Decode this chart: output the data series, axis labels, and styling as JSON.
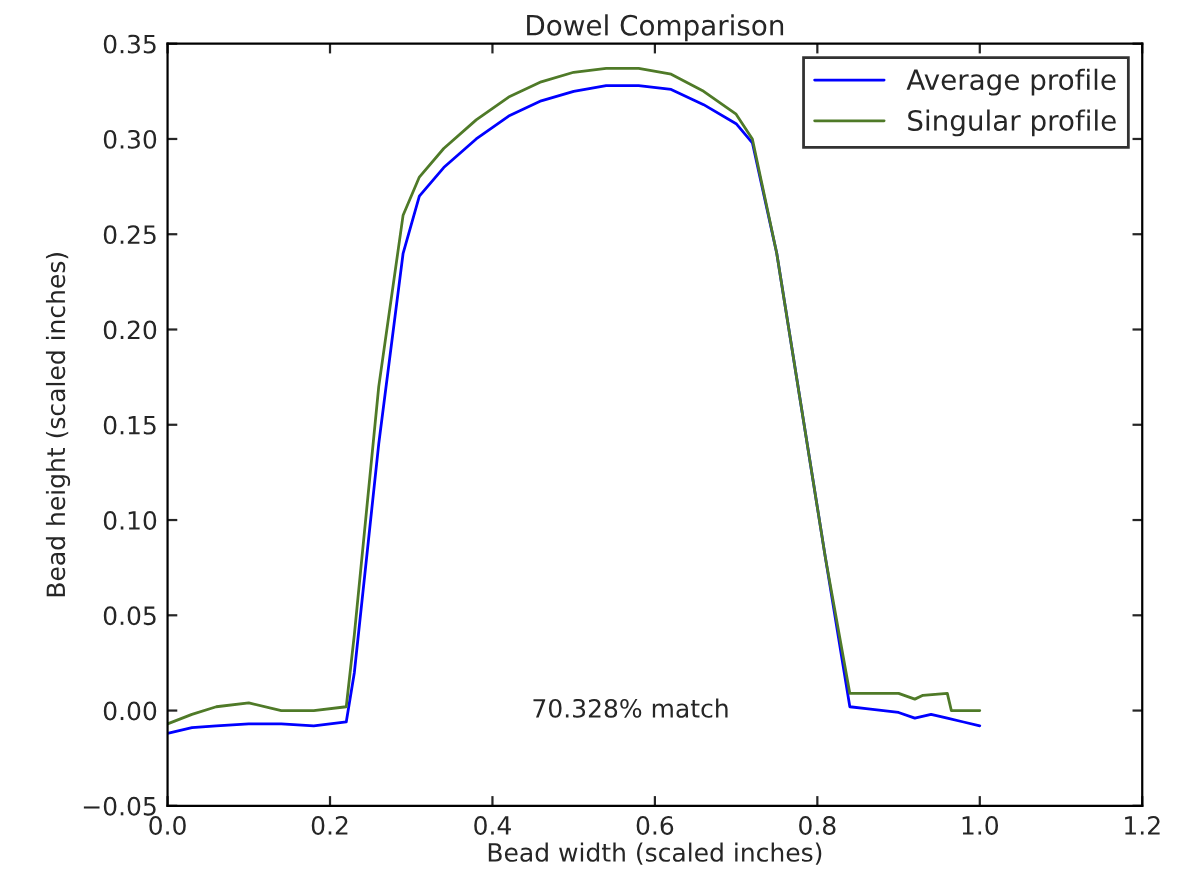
{
  "chart_data": {
    "type": "line",
    "title": "Dowel Comparison",
    "xlabel": "Bead width (scaled inches)",
    "ylabel": "Bead height (scaled inches)",
    "annotations": [
      "70.328% match"
    ],
    "xlim": [
      0.0,
      1.2
    ],
    "xticks": [
      {
        "value": 0.0,
        "label": "0.0"
      },
      {
        "value": 0.2,
        "label": "0.2"
      },
      {
        "value": 0.4,
        "label": "0.4"
      },
      {
        "value": 0.6,
        "label": "0.6"
      },
      {
        "value": 0.8,
        "label": "0.8"
      },
      {
        "value": 1.0,
        "label": "1.0"
      },
      {
        "value": 1.2,
        "label": "1.2"
      }
    ],
    "ylim": [
      -0.05,
      0.35
    ],
    "yticks": [
      {
        "value": -0.05,
        "label": "−0.05"
      },
      {
        "value": 0.0,
        "label": "0.00"
      },
      {
        "value": 0.05,
        "label": "0.05"
      },
      {
        "value": 0.1,
        "label": "0.10"
      },
      {
        "value": 0.15,
        "label": "0.15"
      },
      {
        "value": 0.2,
        "label": "0.20"
      },
      {
        "value": 0.25,
        "label": "0.25"
      },
      {
        "value": 0.3,
        "label": "0.30"
      },
      {
        "value": 0.35,
        "label": "0.35"
      }
    ],
    "legend": "top right",
    "grid": false,
    "series": [
      {
        "name": "Average profile",
        "color": "#0000ff",
        "x": [
          0.0,
          0.03,
          0.06,
          0.1,
          0.14,
          0.18,
          0.22,
          0.23,
          0.26,
          0.29,
          0.31,
          0.34,
          0.38,
          0.42,
          0.46,
          0.5,
          0.54,
          0.58,
          0.62,
          0.66,
          0.7,
          0.72,
          0.75,
          0.78,
          0.81,
          0.84,
          0.86,
          0.9,
          0.92,
          0.94,
          0.96,
          0.98,
          1.0
        ],
        "values": [
          -0.012,
          -0.009,
          -0.008,
          -0.007,
          -0.007,
          -0.008,
          -0.006,
          0.02,
          0.14,
          0.24,
          0.27,
          0.285,
          0.3,
          0.312,
          0.32,
          0.325,
          0.328,
          0.328,
          0.326,
          0.318,
          0.308,
          0.298,
          0.24,
          0.16,
          0.08,
          0.002,
          0.001,
          -0.001,
          -0.004,
          -0.002,
          -0.004,
          -0.006,
          -0.008
        ]
      },
      {
        "name": "Singular profile",
        "color": "#4f7a28",
        "x": [
          0.0,
          0.03,
          0.06,
          0.1,
          0.14,
          0.18,
          0.22,
          0.23,
          0.26,
          0.29,
          0.31,
          0.34,
          0.38,
          0.42,
          0.46,
          0.5,
          0.54,
          0.58,
          0.62,
          0.66,
          0.7,
          0.72,
          0.75,
          0.78,
          0.81,
          0.84,
          0.86,
          0.9,
          0.92,
          0.93,
          0.96,
          0.965,
          1.0
        ],
        "values": [
          -0.007,
          -0.002,
          0.002,
          0.004,
          0.0,
          0.0,
          0.002,
          0.04,
          0.17,
          0.26,
          0.28,
          0.295,
          0.31,
          0.322,
          0.33,
          0.335,
          0.337,
          0.337,
          0.334,
          0.325,
          0.313,
          0.3,
          0.24,
          0.16,
          0.08,
          0.009,
          0.009,
          0.009,
          0.006,
          0.008,
          0.009,
          0.0,
          0.0
        ]
      }
    ]
  }
}
